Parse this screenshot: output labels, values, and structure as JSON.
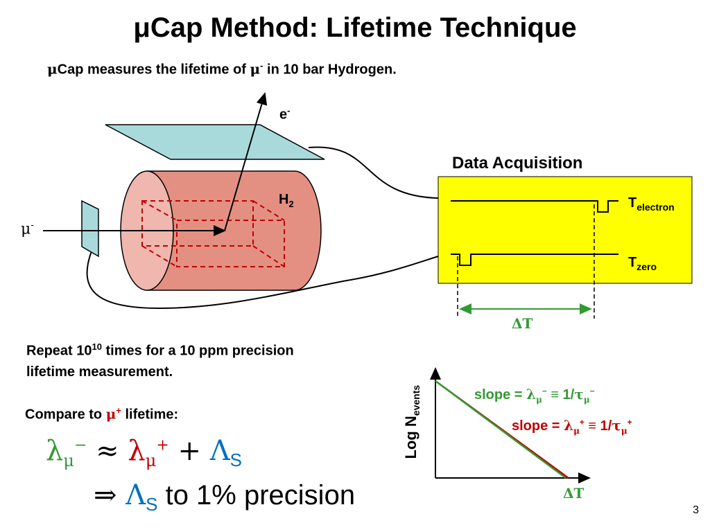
{
  "slide": {
    "title": "μCap Method: Lifetime Technique",
    "subtitle": {
      "mu": "μ",
      "text": "Cap measures the lifetime of ",
      "mu2": "μ",
      "sup": "-",
      "rest": " in 10 bar Hydrogen."
    },
    "slide_number": "3"
  },
  "apparatus": {
    "electron_label": "e",
    "electron_sup": "-",
    "h2_label": "H",
    "h2_sub": "2",
    "muon_label": "μ",
    "muon_sup": "-",
    "colors": {
      "detector": "#a9dadb",
      "cylinder": "#e39083",
      "cylinder_cap": "#efb7ae",
      "dashed_box": "#c00000"
    }
  },
  "daq": {
    "title": "Data Acquisition",
    "t_electron": "T",
    "t_electron_sub": "electron",
    "t_zero": "T",
    "t_zero_sub": "zero",
    "delta_t": "ΔT",
    "colors": {
      "panel": "#ffff00",
      "arrow": "#339933"
    }
  },
  "notes": {
    "repeat_a": "Repeat 10",
    "repeat_sup": "10",
    "repeat_b": " times for a 10 ppm precision",
    "repeat_line2": "lifetime measurement.",
    "compare_a": "Compare to ",
    "compare_mu": "μ",
    "compare_sup": "+",
    "compare_b": " lifetime:"
  },
  "equations": {
    "line1": {
      "lambda_minus": "λ",
      "mu_minus": "μ",
      "minus_sup": "−",
      "approx": " ≈ ",
      "lambda_plus": "λ",
      "mu_plus": "μ",
      "plus_sup": "+",
      "plus": " + ",
      "Lambda": "Λ",
      "S": "S"
    },
    "line2": {
      "implies": "⇒ ",
      "Lambda": "Λ",
      "S": "S",
      "rest": " to 1% precision"
    }
  },
  "chart": {
    "ylabel": "Log N",
    "ylabel_sub": "events",
    "xlabel": "ΔT",
    "slope_minus": {
      "prefix": "slope = ",
      "lam": "λ",
      "mu": "μ",
      "sup": "−",
      "eq": " ≡ 1/",
      "tau": "τ",
      "mu2": "μ",
      "sup2": "−",
      "color": "#339933"
    },
    "slope_plus": {
      "prefix": "slope = ",
      "lam": "λ",
      "mu": "μ",
      "sup": "+",
      "eq": " ≡ 1/",
      "tau": "τ",
      "mu2": "μ",
      "sup2": "+",
      "color": "#c00000"
    }
  },
  "chart_data": {
    "type": "line",
    "xlabel": "ΔT",
    "ylabel": "Log N events",
    "series": [
      {
        "name": "slope = λμ− ≡ 1/τμ−",
        "x": [
          0,
          1
        ],
        "y": [
          1,
          0
        ],
        "color": "#339933"
      },
      {
        "name": "slope = λμ+ ≡ 1/τμ+",
        "x": [
          0,
          1.02
        ],
        "y": [
          1,
          0
        ],
        "color": "#c00000"
      }
    ]
  }
}
